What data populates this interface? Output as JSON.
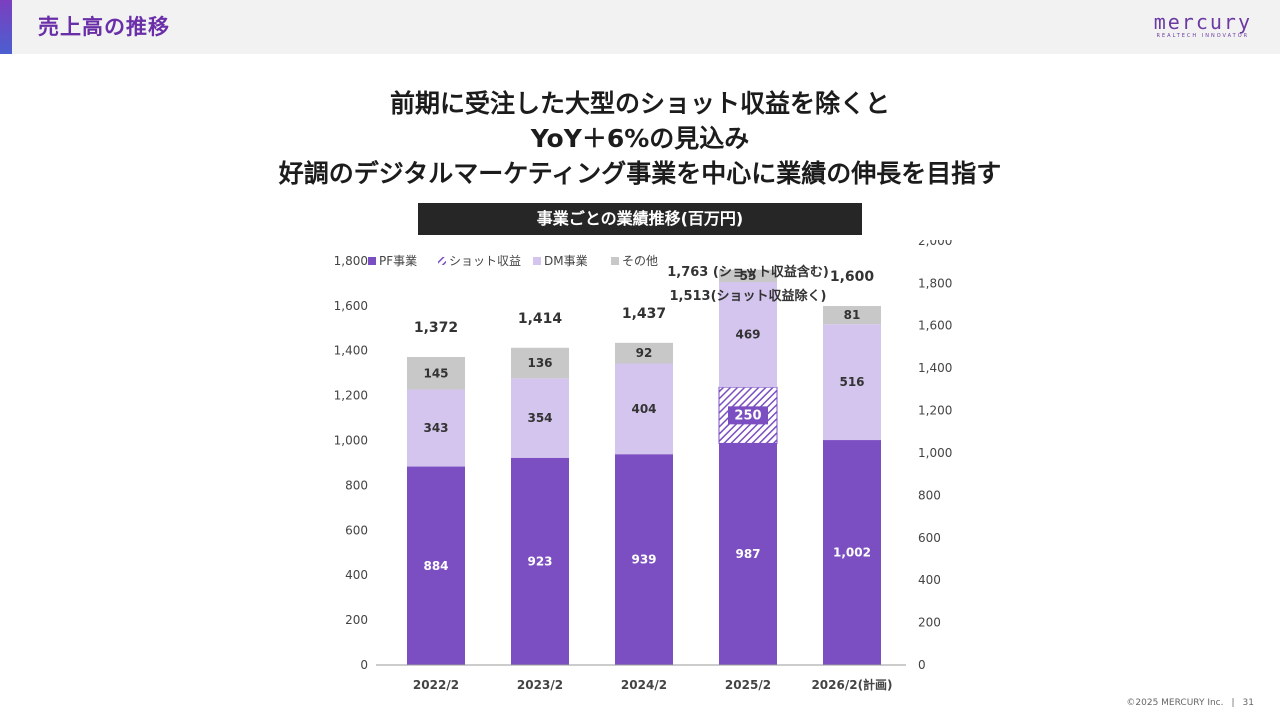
{
  "header": {
    "title": "売上高の推移",
    "logo_text": "mercury",
    "logo_sub": "REALTECH INNOVATOR"
  },
  "headline": {
    "line1": "前期に受注した大型のショット収益を除くと",
    "line2": "YoY＋6%の見込み",
    "line3": "好調のデジタルマーケティング事業を中心に業績の伸長を目指す"
  },
  "chart_banner": "事業ごとの業績推移(百万円)",
  "footer": {
    "copyright": "©2025 MERCURY Inc.",
    "page": "31"
  },
  "chart_data": {
    "type": "bar",
    "stacked": true,
    "categories": [
      "2022/2",
      "2023/2",
      "2024/2",
      "2025/2",
      "2026/2(計画)"
    ],
    "series": [
      {
        "name": "PF事業",
        "values": [
          884,
          923,
          939,
          987,
          1002
        ],
        "color": "#7b4fc2",
        "pattern": "solid"
      },
      {
        "name": "ショット収益",
        "values": [
          0,
          0,
          0,
          250,
          0
        ],
        "color": "#7b4fc2",
        "pattern": "hatched"
      },
      {
        "name": "DM事業",
        "values": [
          343,
          354,
          404,
          469,
          516
        ],
        "color": "#d4c5ee",
        "pattern": "solid"
      },
      {
        "name": "その他",
        "values": [
          145,
          136,
          92,
          55,
          81
        ],
        "color": "#c8c8c8",
        "pattern": "solid"
      }
    ],
    "totals": [
      "1,372",
      "1,414",
      "1,437",
      "",
      "1,600"
    ],
    "total_2025_line1": "1,763 (ショット収益含む)",
    "total_2025_line2": "1,513(ショット収益除く)",
    "left_axis": {
      "ylim": [
        0,
        1800
      ],
      "ticks": [
        "0",
        "200",
        "400",
        "600",
        "800",
        "1,000",
        "1,200",
        "1,400",
        "1,600",
        "1,800"
      ]
    },
    "right_axis": {
      "ylim": [
        0,
        2000
      ],
      "ticks": [
        "0",
        "200",
        "400",
        "600",
        "800",
        "1,000",
        "1,200",
        "1,400",
        "1,600",
        "1,800",
        "2,000"
      ]
    },
    "legend_position": "top-left",
    "grid": false
  }
}
